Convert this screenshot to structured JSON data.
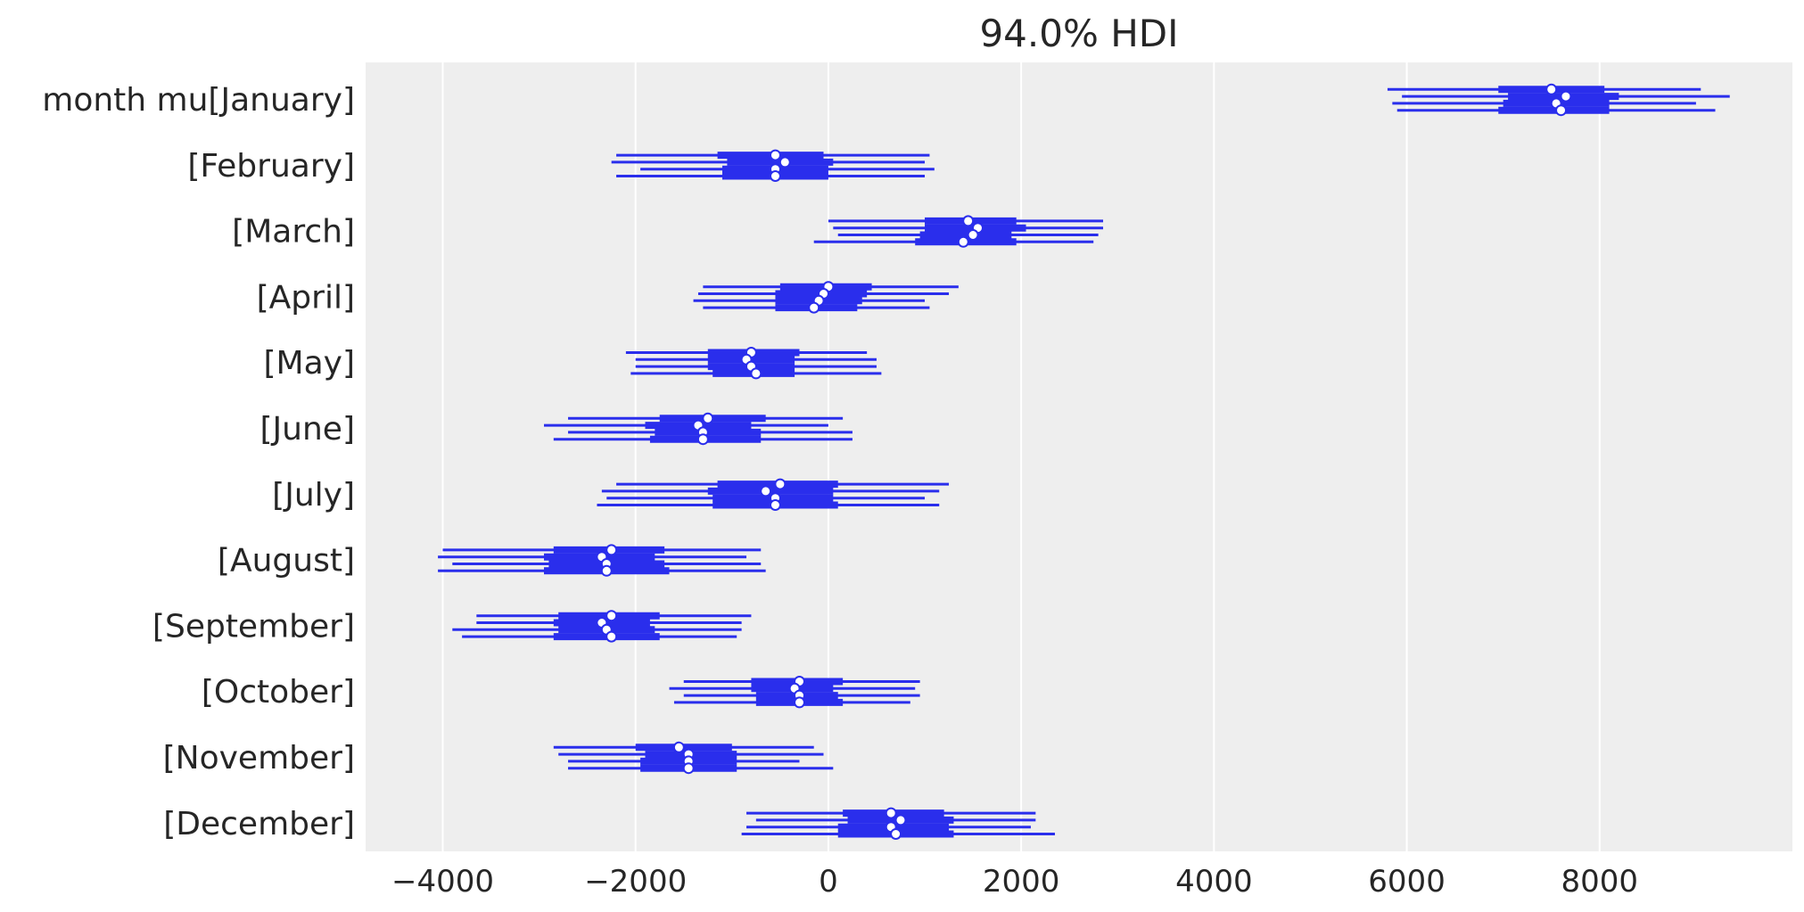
{
  "chart_data": {
    "type": "forest",
    "title": "94.0% HDI",
    "xlabel": "",
    "ylabel": "",
    "xlim": [
      -4800,
      10000
    ],
    "xticks": [
      -4000,
      -2000,
      0,
      2000,
      4000,
      6000,
      8000
    ],
    "xtick_labels": [
      "−4000",
      "−2000",
      "0",
      "2000",
      "4000",
      "6000",
      "8000"
    ],
    "grid": "vertical",
    "colors": {
      "intervals": "#2a2eec",
      "median_fill": "#ffffff",
      "panel": "#eeeeee",
      "grid": "#ffffff"
    },
    "row_labels": [
      "month mu[January]",
      "[February]",
      "[March]",
      "[April]",
      "[May]",
      "[June]",
      "[July]",
      "[August]",
      "[September]",
      "[October]",
      "[November]",
      "[December]"
    ],
    "rows": [
      {
        "label": "month mu[January]",
        "chains": [
          {
            "hdi94": [
              5800,
              9050
            ],
            "q25_75": [
              6950,
              8050
            ],
            "median": 7500
          },
          {
            "hdi94": [
              5950,
              9350
            ],
            "q25_75": [
              7050,
              8200
            ],
            "median": 7650
          },
          {
            "hdi94": [
              5850,
              9000
            ],
            "q25_75": [
              7000,
              8100
            ],
            "median": 7550
          },
          {
            "hdi94": [
              5900,
              9200
            ],
            "q25_75": [
              6950,
              8100
            ],
            "median": 7600
          }
        ]
      },
      {
        "label": "[February]",
        "chains": [
          {
            "hdi94": [
              -2200,
              1050
            ],
            "q25_75": [
              -1150,
              -50
            ],
            "median": -550
          },
          {
            "hdi94": [
              -2250,
              1000
            ],
            "q25_75": [
              -1050,
              50
            ],
            "median": -450
          },
          {
            "hdi94": [
              -1950,
              1100
            ],
            "q25_75": [
              -1100,
              0
            ],
            "median": -550
          },
          {
            "hdi94": [
              -2200,
              1000
            ],
            "q25_75": [
              -1100,
              0
            ],
            "median": -550
          }
        ]
      },
      {
        "label": "[March]",
        "chains": [
          {
            "hdi94": [
              0,
              2850
            ],
            "q25_75": [
              1000,
              1950
            ],
            "median": 1450
          },
          {
            "hdi94": [
              50,
              2850
            ],
            "q25_75": [
              1000,
              2050
            ],
            "median": 1550
          },
          {
            "hdi94": [
              100,
              2800
            ],
            "q25_75": [
              950,
              1900
            ],
            "median": 1500
          },
          {
            "hdi94": [
              -150,
              2750
            ],
            "q25_75": [
              900,
              1950
            ],
            "median": 1400
          }
        ]
      },
      {
        "label": "[April]",
        "chains": [
          {
            "hdi94": [
              -1300,
              1350
            ],
            "q25_75": [
              -500,
              450
            ],
            "median": 0
          },
          {
            "hdi94": [
              -1350,
              1250
            ],
            "q25_75": [
              -550,
              400
            ],
            "median": -50
          },
          {
            "hdi94": [
              -1400,
              1000
            ],
            "q25_75": [
              -550,
              350
            ],
            "median": -100
          },
          {
            "hdi94": [
              -1300,
              1050
            ],
            "q25_75": [
              -550,
              300
            ],
            "median": -150
          }
        ]
      },
      {
        "label": "[May]",
        "chains": [
          {
            "hdi94": [
              -2100,
              400
            ],
            "q25_75": [
              -1250,
              -300
            ],
            "median": -800
          },
          {
            "hdi94": [
              -2000,
              500
            ],
            "q25_75": [
              -1250,
              -350
            ],
            "median": -850
          },
          {
            "hdi94": [
              -2000,
              500
            ],
            "q25_75": [
              -1250,
              -350
            ],
            "median": -800
          },
          {
            "hdi94": [
              -2050,
              550
            ],
            "q25_75": [
              -1200,
              -350
            ],
            "median": -750
          }
        ]
      },
      {
        "label": "[June]",
        "chains": [
          {
            "hdi94": [
              -2700,
              150
            ],
            "q25_75": [
              -1750,
              -650
            ],
            "median": -1250
          },
          {
            "hdi94": [
              -2950,
              0
            ],
            "q25_75": [
              -1900,
              -800
            ],
            "median": -1350
          },
          {
            "hdi94": [
              -2700,
              250
            ],
            "q25_75": [
              -1800,
              -700
            ],
            "median": -1300
          },
          {
            "hdi94": [
              -2850,
              250
            ],
            "q25_75": [
              -1850,
              -700
            ],
            "median": -1300
          }
        ]
      },
      {
        "label": "[July]",
        "chains": [
          {
            "hdi94": [
              -2200,
              1250
            ],
            "q25_75": [
              -1150,
              100
            ],
            "median": -500
          },
          {
            "hdi94": [
              -2350,
              1150
            ],
            "q25_75": [
              -1250,
              50
            ],
            "median": -650
          },
          {
            "hdi94": [
              -2300,
              1000
            ],
            "q25_75": [
              -1200,
              50
            ],
            "median": -550
          },
          {
            "hdi94": [
              -2400,
              1150
            ],
            "q25_75": [
              -1200,
              100
            ],
            "median": -550
          }
        ]
      },
      {
        "label": "[August]",
        "chains": [
          {
            "hdi94": [
              -4000,
              -700
            ],
            "q25_75": [
              -2850,
              -1700
            ],
            "median": -2250
          },
          {
            "hdi94": [
              -4050,
              -850
            ],
            "q25_75": [
              -2950,
              -1800
            ],
            "median": -2350
          },
          {
            "hdi94": [
              -3900,
              -700
            ],
            "q25_75": [
              -2900,
              -1700
            ],
            "median": -2300
          },
          {
            "hdi94": [
              -4050,
              -650
            ],
            "q25_75": [
              -2950,
              -1650
            ],
            "median": -2300
          }
        ]
      },
      {
        "label": "[September]",
        "chains": [
          {
            "hdi94": [
              -3650,
              -800
            ],
            "q25_75": [
              -2800,
              -1750
            ],
            "median": -2250
          },
          {
            "hdi94": [
              -3650,
              -900
            ],
            "q25_75": [
              -2850,
              -1850
            ],
            "median": -2350
          },
          {
            "hdi94": [
              -3900,
              -900
            ],
            "q25_75": [
              -2800,
              -1800
            ],
            "median": -2300
          },
          {
            "hdi94": [
              -3800,
              -950
            ],
            "q25_75": [
              -2850,
              -1750
            ],
            "median": -2250
          }
        ]
      },
      {
        "label": "[October]",
        "chains": [
          {
            "hdi94": [
              -1500,
              950
            ],
            "q25_75": [
              -800,
              150
            ],
            "median": -300
          },
          {
            "hdi94": [
              -1650,
              900
            ],
            "q25_75": [
              -800,
              50
            ],
            "median": -350
          },
          {
            "hdi94": [
              -1500,
              950
            ],
            "q25_75": [
              -750,
              100
            ],
            "median": -300
          },
          {
            "hdi94": [
              -1600,
              850
            ],
            "q25_75": [
              -750,
              150
            ],
            "median": -300
          }
        ]
      },
      {
        "label": "[November]",
        "chains": [
          {
            "hdi94": [
              -2850,
              -150
            ],
            "q25_75": [
              -2000,
              -1000
            ],
            "median": -1550
          },
          {
            "hdi94": [
              -2800,
              -50
            ],
            "q25_75": [
              -1900,
              -950
            ],
            "median": -1450
          },
          {
            "hdi94": [
              -2700,
              -300
            ],
            "q25_75": [
              -1950,
              -950
            ],
            "median": -1450
          },
          {
            "hdi94": [
              -2700,
              50
            ],
            "q25_75": [
              -1950,
              -950
            ],
            "median": -1450
          }
        ]
      },
      {
        "label": "[December]",
        "chains": [
          {
            "hdi94": [
              -850,
              2150
            ],
            "q25_75": [
              150,
              1200
            ],
            "median": 650
          },
          {
            "hdi94": [
              -750,
              2150
            ],
            "q25_75": [
              200,
              1300
            ],
            "median": 750
          },
          {
            "hdi94": [
              -850,
              2100
            ],
            "q25_75": [
              100,
              1250
            ],
            "median": 650
          },
          {
            "hdi94": [
              -900,
              2350
            ],
            "q25_75": [
              100,
              1300
            ],
            "median": 700
          }
        ]
      }
    ]
  }
}
